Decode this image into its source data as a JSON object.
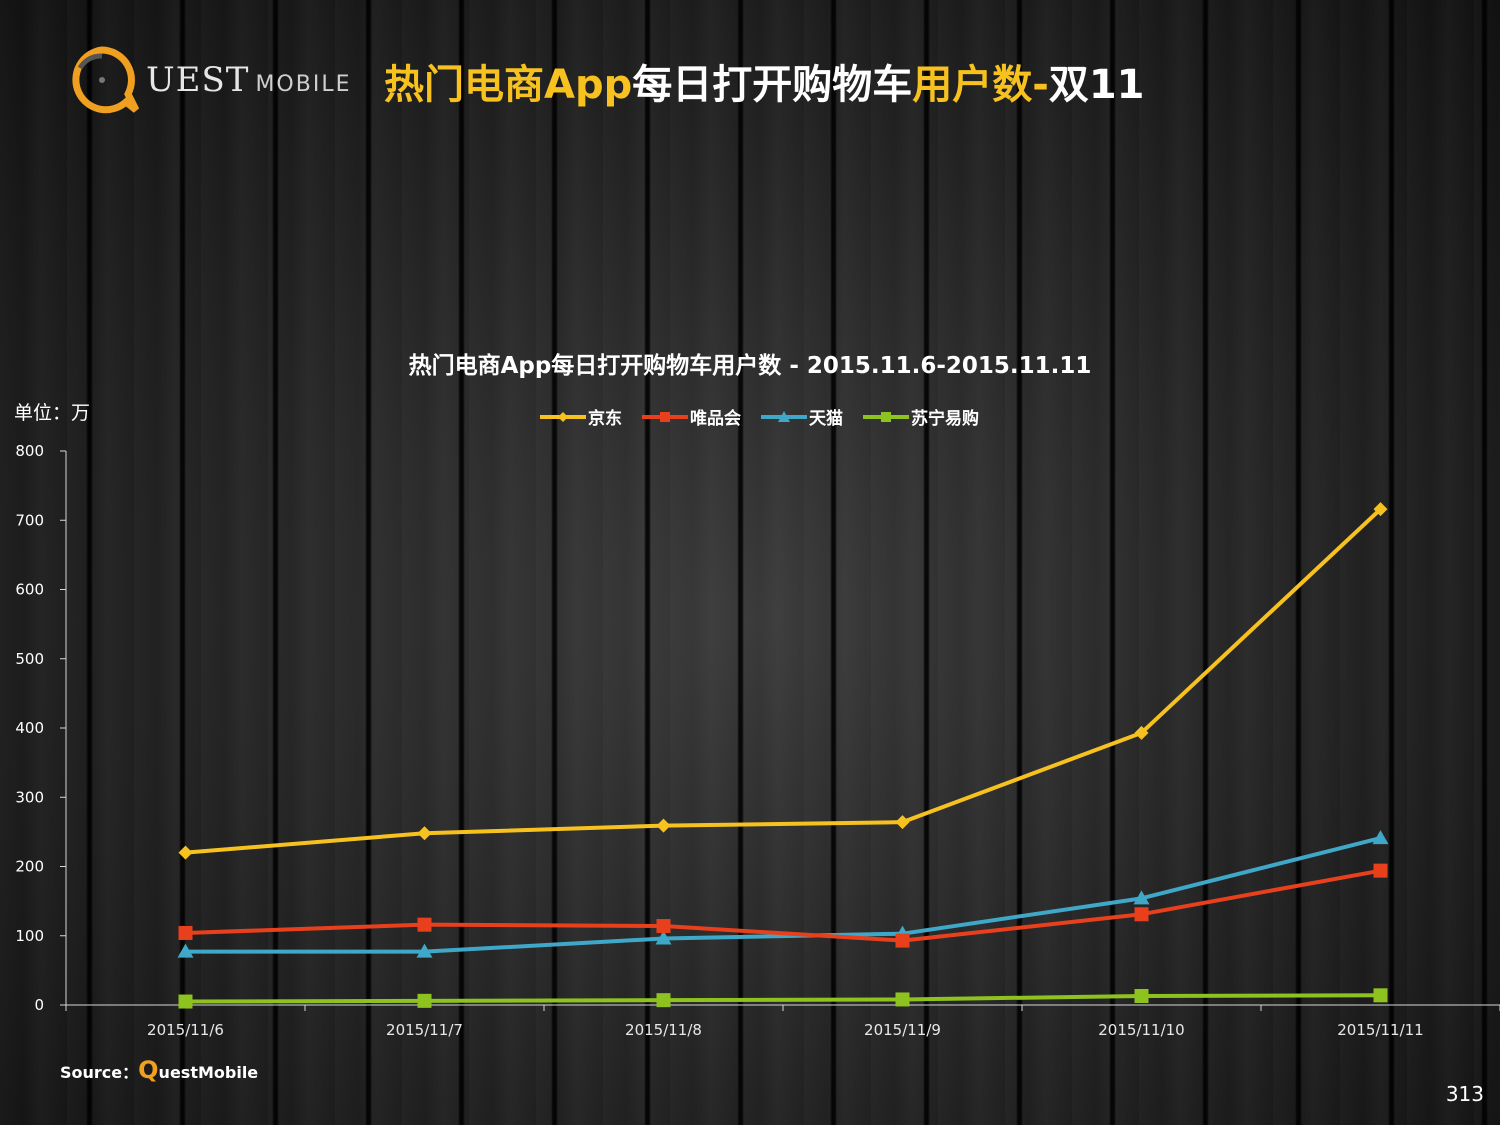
{
  "logo": {
    "brand": "UEST",
    "suffix": "MOBILE"
  },
  "page_title": {
    "part1": "热门电商App",
    "part2": "每日打开购物车",
    "part3": "用户数-",
    "part4": "双11"
  },
  "page_number": "313",
  "source": {
    "prefix": "Source：",
    "q": "Q",
    "rest": "uestMobile"
  },
  "colors": {
    "jd": "#f7c21f",
    "vip": "#e8401c",
    "tmall": "#3fa8c8",
    "suning": "#8dc21f",
    "accent": "#f7c21f"
  },
  "chart_data": {
    "type": "line",
    "title": "热门电商App每日打开购物车用户数 - 2015.11.6-2015.11.11",
    "unit_label": "单位：万",
    "categories": [
      "2015/11/6",
      "2015/11/7",
      "2015/11/8",
      "2015/11/9",
      "2015/11/10",
      "2015/11/11"
    ],
    "yticks": [
      "0",
      "100",
      "200",
      "300",
      "400",
      "500",
      "600",
      "700",
      "800"
    ],
    "ylim": [
      0,
      800
    ],
    "legend_position": "top",
    "grid": false,
    "series": [
      {
        "name": "京东",
        "marker": "diamond",
        "color": "#f7c21f",
        "values": [
          220,
          248,
          259,
          264,
          393,
          716
        ]
      },
      {
        "name": "唯品会",
        "marker": "square",
        "color": "#e8401c",
        "values": [
          104,
          116,
          114,
          93,
          131,
          194
        ]
      },
      {
        "name": "天猫",
        "marker": "triangle",
        "color": "#3fa8c8",
        "values": [
          77,
          77,
          96,
          103,
          154,
          241
        ]
      },
      {
        "name": "苏宁易购",
        "marker": "square",
        "color": "#8dc21f",
        "values": [
          5,
          6,
          7,
          8,
          13,
          14
        ]
      }
    ]
  }
}
